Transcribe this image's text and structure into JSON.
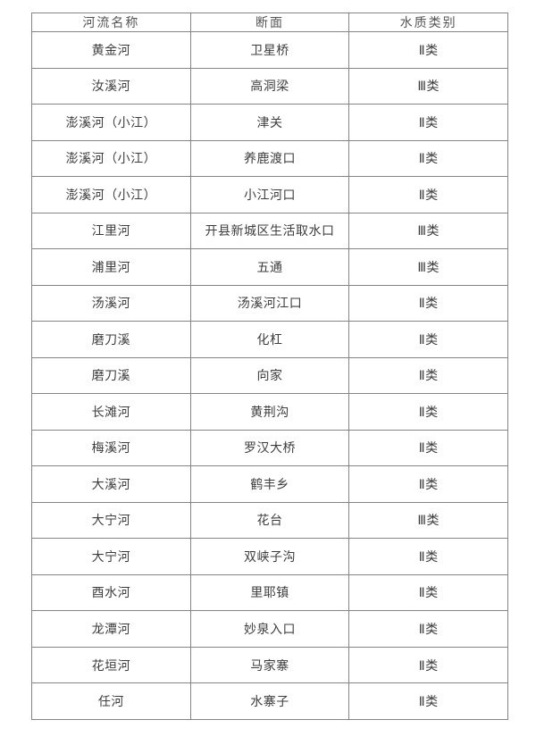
{
  "table": {
    "title": "water-quality-by-river-section",
    "headers": [
      "河流名称",
      "断面",
      "水质类别"
    ],
    "rows": [
      [
        "黄金河",
        "卫星桥",
        "Ⅱ类"
      ],
      [
        "汝溪河",
        "高洞梁",
        "Ⅲ类"
      ],
      [
        "澎溪河（小江）",
        "津关",
        "Ⅱ类"
      ],
      [
        "澎溪河（小江）",
        "养鹿渡口",
        "Ⅱ类"
      ],
      [
        "澎溪河（小江）",
        "小江河口",
        "Ⅱ类"
      ],
      [
        "江里河",
        "开县新城区生活取水口",
        "Ⅲ类"
      ],
      [
        "浦里河",
        "五通",
        "Ⅲ类"
      ],
      [
        "汤溪河",
        "汤溪河江口",
        "Ⅱ类"
      ],
      [
        "磨刀溪",
        "化杠",
        "Ⅱ类"
      ],
      [
        "磨刀溪",
        "向家",
        "Ⅱ类"
      ],
      [
        "长滩河",
        "黄荆沟",
        "Ⅱ类"
      ],
      [
        "梅溪河",
        "罗汉大桥",
        "Ⅱ类"
      ],
      [
        "大溪河",
        "鹤丰乡",
        "Ⅱ类"
      ],
      [
        "大宁河",
        "花台",
        "Ⅲ类"
      ],
      [
        "大宁河",
        "双峡子沟",
        "Ⅱ类"
      ],
      [
        "酉水河",
        "里耶镇",
        "Ⅱ类"
      ],
      [
        "龙潭河",
        "妙泉入口",
        "Ⅱ类"
      ],
      [
        "花垣河",
        "马家寨",
        "Ⅱ类"
      ],
      [
        "任河",
        "水寨子",
        "Ⅱ类"
      ]
    ],
    "colors": {
      "border": "#848484",
      "header_text": "#555555",
      "body_text": "#3d3d3d",
      "background": "#ffffff"
    }
  }
}
